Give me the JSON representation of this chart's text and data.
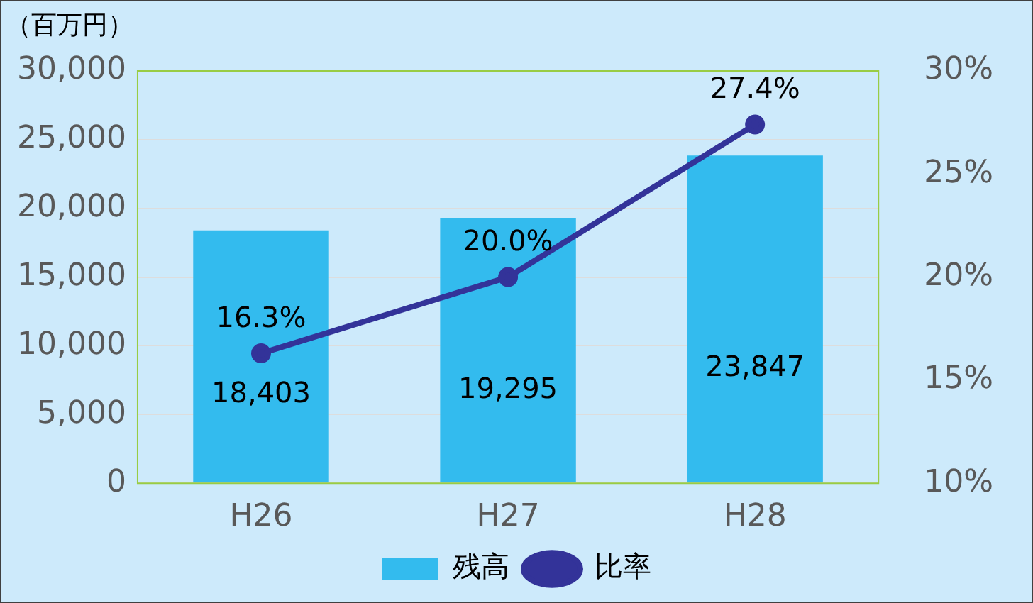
{
  "chart_data": {
    "type": "bar",
    "ylabel": "（百万円）",
    "categories": [
      "H26",
      "H27",
      "H28"
    ],
    "series": [
      {
        "name": "残高",
        "color": "#33bbee",
        "values": [
          18403,
          19295,
          23847
        ],
        "value_labels": [
          "18,403",
          "19,295",
          "23,847"
        ]
      },
      {
        "name": "比率",
        "type": "line",
        "axis": "y2",
        "color": "#333399",
        "values": [
          16.3,
          20.0,
          27.4
        ],
        "value_labels": [
          "16.3%",
          "20.0%",
          "27.4%"
        ]
      }
    ],
    "ylim": [
      0,
      30000
    ],
    "yticks": [
      0,
      {
        "value": 5000,
        "label": "5,000"
      },
      {
        "value": 10000,
        "label": "10,000"
      },
      {
        "value": 15000,
        "label": "15,000"
      },
      {
        "value": 20000,
        "label": "20,000"
      },
      {
        "value": 25000,
        "label": "25,000"
      },
      {
        "value": 30000,
        "label": "30,000"
      }
    ],
    "y2lim": [
      10,
      30
    ],
    "y2ticks": [
      {
        "value": 10,
        "label": "10%"
      },
      {
        "value": 15,
        "label": "15%"
      },
      {
        "value": 20,
        "label": "20%"
      },
      {
        "value": 25,
        "label": "25%"
      },
      {
        "value": 30,
        "label": "30%"
      }
    ],
    "grid": "y",
    "legend": "bottom",
    "marker": "circle"
  }
}
